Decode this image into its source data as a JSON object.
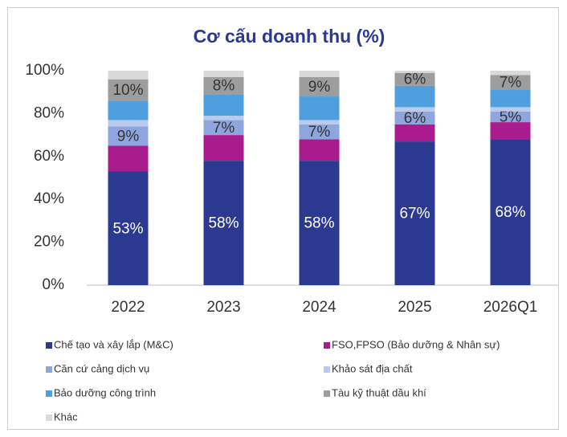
{
  "chart_data": {
    "type": "stacked_bar",
    "title": "Cơ cấu doanh thu (%)",
    "categories": [
      "2022",
      "2023",
      "2024",
      "2025",
      "2026Q1"
    ],
    "series": [
      {
        "name": "Chế tạo và xây lắp (M&C)",
        "color": "#2b3990",
        "values": [
          53,
          58,
          58,
          67,
          68
        ],
        "value_labels": [
          "53%",
          "58%",
          "58%",
          "67%",
          "68%"
        ]
      },
      {
        "name": "FSO,FPSO (Bảo dưỡng & Nhân sự)",
        "color": "#a81c8d",
        "values": [
          12,
          12,
          10,
          8,
          8
        ]
      },
      {
        "name": "Căn cứ cảng dịch vụ",
        "color": "#8fa5dd",
        "values": [
          9,
          7,
          7,
          6,
          5
        ],
        "value_labels": [
          "9%",
          "7%",
          "7%",
          "6%",
          "5%"
        ]
      },
      {
        "name": "Khảo sát địa chất",
        "color": "#b8caee",
        "values": [
          3,
          2,
          2,
          2,
          2
        ]
      },
      {
        "name": "Bảo dưỡng công trình",
        "color": "#4f9fdf",
        "values": [
          9,
          10,
          11,
          10,
          8
        ]
      },
      {
        "name": "Tàu kỹ thuật dầu khí",
        "color": "#9d9d9d",
        "values": [
          10,
          8,
          9,
          6,
          7
        ],
        "value_labels": [
          "10%",
          "8%",
          "9%",
          "6%",
          "7%"
        ]
      },
      {
        "name": "Khác",
        "color": "#d9d9d9",
        "values": [
          4,
          3,
          3,
          1,
          2
        ]
      }
    ],
    "ylim": [
      0,
      100
    ],
    "yticks": [
      {
        "value": 0,
        "label": "0%"
      },
      {
        "value": 20,
        "label": "20%"
      },
      {
        "value": 40,
        "label": "40%"
      },
      {
        "value": 60,
        "label": "60%"
      },
      {
        "value": 80,
        "label": "80%"
      },
      {
        "value": 100,
        "label": "100%"
      }
    ],
    "grid": false,
    "legend": "bottom"
  }
}
